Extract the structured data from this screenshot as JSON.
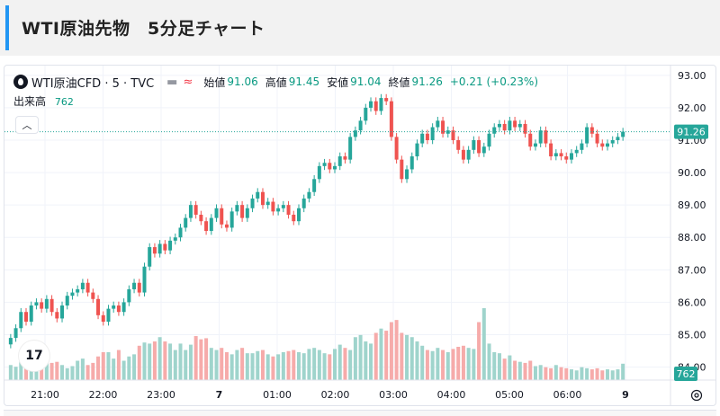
{
  "header": {
    "title": "WTI原油先物　5分足チャート"
  },
  "legend": {
    "symbol": "WTI原油CFD · 5 · TVC",
    "open_label": "始値",
    "open": "91.06",
    "high_label": "高値",
    "high": "91.45",
    "low_label": "安値",
    "low": "91.04",
    "close_label": "終値",
    "close": "91.26",
    "change": "+0.21 (+0.23%)"
  },
  "volume_legend": {
    "label": "出来高",
    "value": "762"
  },
  "price_badge": "91.26",
  "volume_badge": "762",
  "tv_logo": "17",
  "icons": {
    "symbol": "oil-drop-icon",
    "collapse": "chevron-up-icon",
    "settings": "gear-icon",
    "line_style": "dash-icon",
    "wave": "wave-icon"
  },
  "colors": {
    "up": "#26a69a",
    "down": "#ef5350",
    "volume_up": "#9fd4cc",
    "volume_down": "#f6abaa",
    "price_line": "#26a69a",
    "grid": "#f0f3fa",
    "accent": "#2196f3"
  },
  "chart_data": {
    "type": "candlestick",
    "title": "WTI原油CFD · 5 · TVC",
    "y_ticks": [
      "84.00",
      "85.00",
      "86.00",
      "87.00",
      "88.00",
      "89.00",
      "90.00",
      "91.00",
      "92.00",
      "93.00"
    ],
    "ylim": [
      83.6,
      93.3
    ],
    "x_ticks": [
      "21:00",
      "22:00",
      "23:00",
      "7",
      "01:00",
      "02:00",
      "03:00",
      "04:00",
      "05:00",
      "06:00",
      "9"
    ],
    "last_price": 91.26,
    "last_volume": 762,
    "closes": [
      84.9,
      85.2,
      85.7,
      85.4,
      85.9,
      86.0,
      85.8,
      86.1,
      85.7,
      85.5,
      85.9,
      86.2,
      86.3,
      86.4,
      86.6,
      86.3,
      86.1,
      85.6,
      85.4,
      85.8,
      85.9,
      85.7,
      86.0,
      86.4,
      86.6,
      86.3,
      87.1,
      87.7,
      87.5,
      87.8,
      87.6,
      87.9,
      88.0,
      88.3,
      88.6,
      89.0,
      88.7,
      88.5,
      88.2,
      88.6,
      88.9,
      88.4,
      88.3,
      88.8,
      89.0,
      88.6,
      88.9,
      89.2,
      89.4,
      89.0,
      89.1,
      88.8,
      88.9,
      89.0,
      88.7,
      88.5,
      88.9,
      89.2,
      89.4,
      89.8,
      90.2,
      90.3,
      90.1,
      90.2,
      90.5,
      90.4,
      91.1,
      91.3,
      91.6,
      92.0,
      92.2,
      91.9,
      92.3,
      92.2,
      91.1,
      90.4,
      89.8,
      90.1,
      90.5,
      90.9,
      91.2,
      91.0,
      91.4,
      91.6,
      91.2,
      91.3,
      91.0,
      90.7,
      90.4,
      90.7,
      91.0,
      90.6,
      90.8,
      91.2,
      91.4,
      91.5,
      91.3,
      91.6,
      91.4,
      91.5,
      91.2,
      90.8,
      90.9,
      91.3,
      90.9,
      90.5,
      90.6,
      90.5,
      90.4,
      90.6,
      90.7,
      90.9,
      91.4,
      91.2,
      90.9,
      90.8,
      90.9,
      91.0,
      91.1,
      91.26
    ],
    "volumes": [
      700,
      620,
      1050,
      850,
      900,
      850,
      1100,
      900,
      800,
      850,
      700,
      550,
      650,
      900,
      1000,
      700,
      800,
      1100,
      1300,
      1300,
      1000,
      1400,
      900,
      1100,
      1200,
      1600,
      1750,
      1700,
      1800,
      2000,
      1800,
      1700,
      1400,
      1700,
      1400,
      1650,
      2050,
      1900,
      1950,
      1500,
      1400,
      1500,
      1300,
      1200,
      1400,
      1500,
      1250,
      1250,
      1350,
      1400,
      1200,
      1100,
      1200,
      1300,
      1350,
      1400,
      1300,
      1250,
      1450,
      1500,
      1400,
      1250,
      1200,
      1450,
      1650,
      1500,
      1400,
      2000,
      2100,
      1800,
      1700,
      2200,
      2400,
      2300,
      2700,
      2800,
      2200,
      2100,
      2000,
      1800,
      1600,
      1400,
      1350,
      1500,
      1400,
      1300,
      1450,
      1550,
      1600,
      1500,
      1450,
      2700,
      3350,
      1700,
      1300,
      1250,
      1000,
      1150,
      900,
      850,
      800,
      900,
      650,
      700,
      600,
      550,
      700,
      600,
      550,
      500,
      450,
      600,
      550,
      500,
      550,
      450,
      500,
      450,
      500,
      762
    ]
  }
}
